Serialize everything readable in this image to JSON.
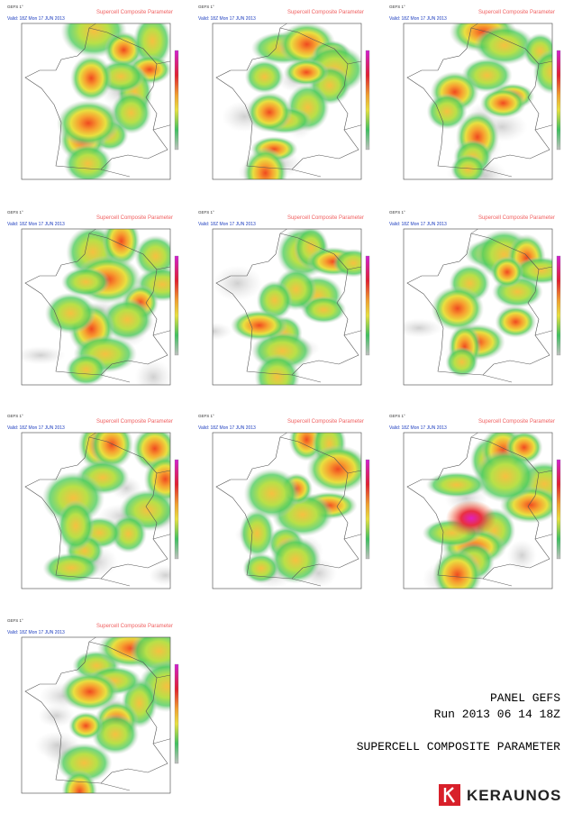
{
  "panels": [
    {
      "model": "GEFS 1°",
      "title": "Supercell Composite Parameter",
      "valid": "Valid: 18Z Mon 17 JUN 2013"
    },
    {
      "model": "GEFS 1°",
      "title": "Supercell Composite Parameter",
      "valid": "Valid: 18Z Mon 17 JUN 2013"
    },
    {
      "model": "GEFS 1°",
      "title": "Supercell Composite Parameter",
      "valid": "Valid: 18Z Mon 17 JUN 2013"
    },
    {
      "model": "GEFS 1°",
      "title": "Supercell Composite Parameter",
      "valid": "Valid: 18Z Mon 17 JUN 2013"
    },
    {
      "model": "GEFS 1°",
      "title": "Supercell Composite Parameter",
      "valid": "Valid: 18Z Mon 17 JUN 2013"
    },
    {
      "model": "GEFS 1°",
      "title": "Supercell Composite Parameter",
      "valid": "Valid: 18Z Mon 17 JUN 2013"
    },
    {
      "model": "GEFS 1°",
      "title": "Supercell Composite Parameter",
      "valid": "Valid: 18Z Mon 17 JUN 2013"
    },
    {
      "model": "GEFS 1°",
      "title": "Supercell Composite Parameter",
      "valid": "Valid: 18Z Mon 17 JUN 2013"
    },
    {
      "model": "GEFS 1°",
      "title": "Supercell Composite Parameter",
      "valid": "Valid: 18Z Mon 17 JUN 2013"
    },
    {
      "model": "GEFS 1°",
      "title": "Supercell Composite Parameter",
      "valid": "Valid: 18Z Mon 17 JUN 2013"
    }
  ],
  "footer": {
    "line1": "PANEL GEFS",
    "line2": "Run 2013 06 14 18Z",
    "line3": "SUPERCELL COMPOSITE PARAMETER"
  },
  "logo": "KERAUNOS"
}
